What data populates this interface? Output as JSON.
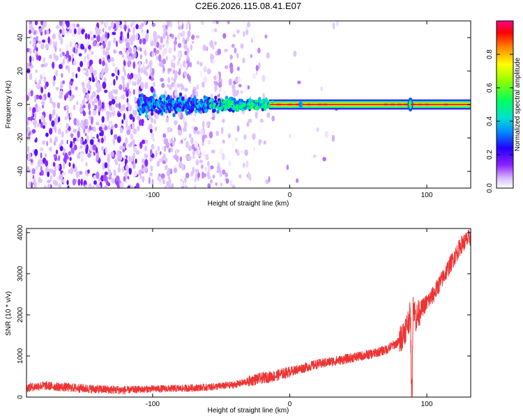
{
  "title": "C2E6.2026.115.08.41.E07",
  "chart_data": [
    {
      "type": "heatmap",
      "title": "C2E6.2026.115.08.41.E07",
      "xlabel": "Height of straight line (km)",
      "ylabel": "Frequency (Hz)",
      "xlim": [
        -192,
        132
      ],
      "ylim": [
        -50,
        50
      ],
      "xticks": [
        -100,
        0,
        100
      ],
      "yticks": [
        -40,
        -20,
        0,
        20,
        40
      ],
      "colorbar": {
        "label": "Normalized spectral amplitude",
        "range": [
          0,
          1
        ],
        "ticks": [
          0.0,
          0.2,
          0.4,
          0.6,
          0.8
        ],
        "colormap": [
          "#ffffff",
          "#c8a0ff",
          "#7a00ff",
          "#0000ff",
          "#00b4ff",
          "#00ff7f",
          "#60ff00",
          "#ffff00",
          "#ff9900",
          "#ff0000",
          "#ff0080"
        ]
      },
      "description_of_values": {
        "band_center_hz": 0,
        "noise_region_km": [
          -192,
          -100
        ],
        "transition_region_km": [
          -100,
          -15
        ],
        "narrow_band_region_km": [
          -15,
          132
        ]
      }
    },
    {
      "type": "line",
      "xlabel": "Height of straight line (km)",
      "ylabel": "SNR (10 * v/v)",
      "xlim": [
        -192,
        132
      ],
      "ylim": [
        0,
        4100
      ],
      "xticks": [
        -100,
        0,
        100
      ],
      "yticks": [
        0,
        1000,
        2000,
        3000,
        4000
      ],
      "color": "#ee3333",
      "x": [
        -192,
        -180,
        -160,
        -140,
        -120,
        -100,
        -80,
        -60,
        -40,
        -25,
        -10,
        0,
        20,
        40,
        60,
        70,
        80,
        85,
        88,
        89,
        90,
        92,
        95,
        100,
        105,
        110,
        115,
        120,
        125,
        132
      ],
      "y": [
        230,
        280,
        230,
        190,
        170,
        200,
        210,
        240,
        300,
        430,
        520,
        620,
        800,
        920,
        1050,
        1150,
        1350,
        1700,
        2000,
        150,
        2300,
        1900,
        2100,
        2300,
        2500,
        2800,
        3100,
        3400,
        3700,
        3900
      ]
    }
  ]
}
